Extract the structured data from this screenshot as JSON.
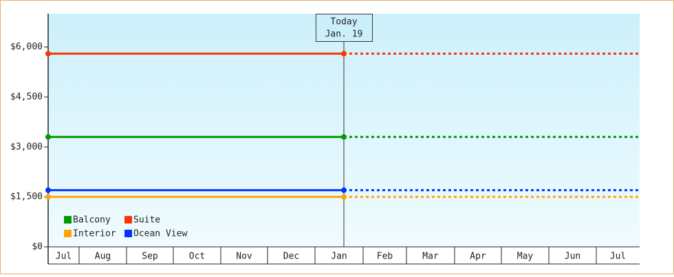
{
  "chart_data": {
    "type": "line",
    "categories": [
      "Jul",
      "Aug",
      "Sep",
      "Oct",
      "Nov",
      "Dec",
      "Jan",
      "Feb",
      "Mar",
      "Apr",
      "May",
      "Jun",
      "Jul"
    ],
    "ylim": [
      0,
      7000
    ],
    "yticks": [
      {
        "value": 0,
        "label": "$0"
      },
      {
        "value": 1500,
        "label": "$1,500"
      },
      {
        "value": 3000,
        "label": "$3,000"
      },
      {
        "value": 4500,
        "label": "$4,500"
      },
      {
        "value": 6000,
        "label": "$6,000"
      }
    ],
    "annotation": {
      "title": "Today",
      "date": "Jan. 19"
    },
    "legend": "bottom-left",
    "series": [
      {
        "name": "Balcony",
        "color": "#009900",
        "values": 3300
      },
      {
        "name": "Suite",
        "color": "#ff3300",
        "values": 5800
      },
      {
        "name": "Interior",
        "color": "#ffa500",
        "values": 1500
      },
      {
        "name": "Ocean View",
        "color": "#0033ff",
        "values": 1700
      }
    ]
  }
}
